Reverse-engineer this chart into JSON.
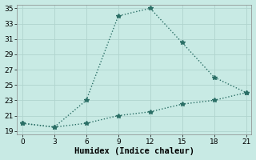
{
  "line1_x": [
    0,
    3,
    6,
    9,
    12,
    15,
    18,
    21
  ],
  "line1_y": [
    20.0,
    19.5,
    23.0,
    34.0,
    35.0,
    30.5,
    26.0,
    24.0
  ],
  "line2_x": [
    0,
    3,
    6,
    9,
    12,
    15,
    18,
    21
  ],
  "line2_y": [
    20.0,
    19.5,
    20.0,
    21.0,
    21.5,
    22.5,
    23.0,
    24.0
  ],
  "line_color": "#2a6e65",
  "bg_color": "#c8eae4",
  "grid_color": "#b0d4ce",
  "xlabel": "Humidex (Indice chaleur)",
  "xlabel_fontsize": 7.5,
  "xticks": [
    0,
    3,
    6,
    9,
    12,
    15,
    18,
    21
  ],
  "yticks": [
    19,
    21,
    23,
    25,
    27,
    29,
    31,
    33,
    35
  ],
  "xlim": [
    -0.5,
    21.5
  ],
  "ylim": [
    18.5,
    35.5
  ],
  "marker": "*",
  "markersize": 4,
  "linewidth": 1.0,
  "tick_fontsize": 6.5
}
